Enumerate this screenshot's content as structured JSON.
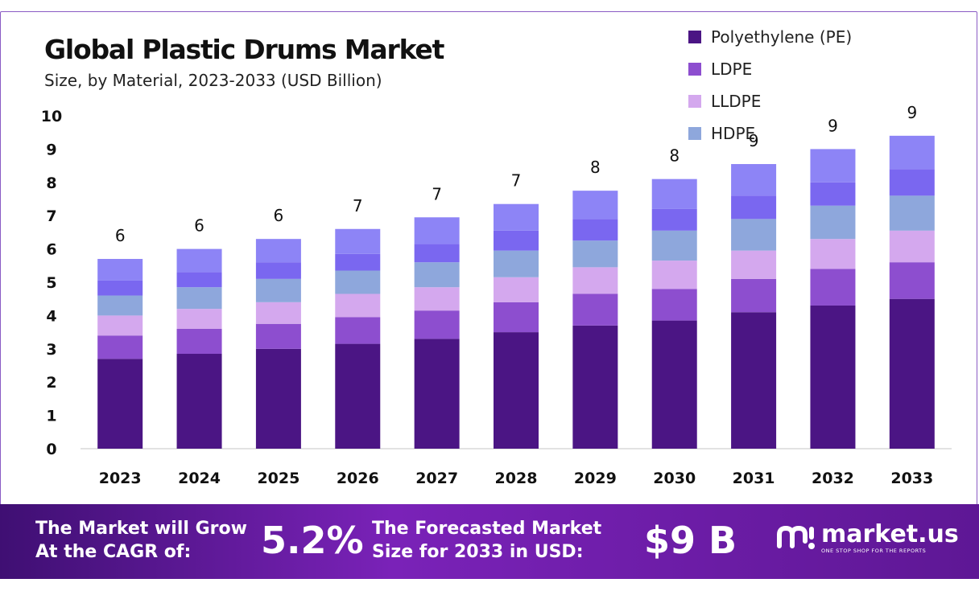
{
  "title": "Global Plastic Drums Market",
  "subtitle": "Size, by Material, 2023-2033 (USD Billion)",
  "colors": {
    "pe": "#4b1584",
    "ldpe": "#8d4ecf",
    "lldpe": "#d4a8ee",
    "hdpe": "#8ea7dc",
    "s5": "#7a67f0",
    "s6": "#8d84f6",
    "frame": "#8a5bc4"
  },
  "chart_data": {
    "type": "bar",
    "stacked": true,
    "title": "Global Plastic Drums Market",
    "subtitle": "Size, by Material, 2023-2033 (USD Billion)",
    "categories": [
      "2023",
      "2024",
      "2025",
      "2026",
      "2027",
      "2028",
      "2029",
      "2030",
      "2031",
      "2032",
      "2033"
    ],
    "series": [
      {
        "name": "Polyethylene (PE)",
        "color": "#4b1584",
        "values": [
          2.7,
          2.85,
          3.0,
          3.15,
          3.3,
          3.5,
          3.7,
          3.85,
          4.1,
          4.3,
          4.5
        ]
      },
      {
        "name": "LDPE",
        "color": "#8d4ecf",
        "values": [
          0.7,
          0.75,
          0.75,
          0.8,
          0.85,
          0.9,
          0.95,
          0.95,
          1.0,
          1.1,
          1.1
        ]
      },
      {
        "name": "LLDPE",
        "color": "#d4a8ee",
        "values": [
          0.6,
          0.6,
          0.65,
          0.7,
          0.7,
          0.75,
          0.8,
          0.85,
          0.85,
          0.9,
          0.95
        ]
      },
      {
        "name": "HDPE",
        "color": "#8ea7dc",
        "values": [
          0.6,
          0.65,
          0.7,
          0.7,
          0.75,
          0.8,
          0.8,
          0.9,
          0.95,
          1.0,
          1.05
        ]
      },
      {
        "name": "",
        "color": "#7a67f0",
        "values": [
          0.45,
          0.45,
          0.5,
          0.5,
          0.55,
          0.6,
          0.65,
          0.65,
          0.7,
          0.7,
          0.8
        ]
      },
      {
        "name": "",
        "color": "#8d84f6",
        "values": [
          0.65,
          0.7,
          0.7,
          0.75,
          0.8,
          0.8,
          0.85,
          0.9,
          0.95,
          1.0,
          1.0
        ]
      }
    ],
    "totals_labels": [
      "6",
      "6",
      "6",
      "7",
      "7",
      "7",
      "8",
      "8",
      "9",
      "9",
      "9"
    ],
    "xlabel": "",
    "ylabel": "",
    "ylim": [
      0,
      10
    ],
    "yticks": [
      "0",
      "1",
      "2",
      "3",
      "4",
      "5",
      "6",
      "7",
      "8",
      "9",
      "10"
    ],
    "legend_position": "top-right"
  },
  "legend": [
    {
      "label": "Polyethylene (PE)",
      "color": "#4b1584"
    },
    {
      "label": "LDPE",
      "color": "#8d4ecf"
    },
    {
      "label": "LLDPE",
      "color": "#d4a8ee"
    },
    {
      "label": "HDPE",
      "color": "#8ea7dc"
    }
  ],
  "footer": {
    "cagr_text_line1": "The Market will Grow",
    "cagr_text_line2": "At the CAGR of:",
    "cagr_value": "5.2%",
    "forecast_text_line1": "The Forecasted Market",
    "forecast_text_line2": "Size for 2033 in USD:",
    "forecast_value": "$9 B",
    "brand_name": "market.us",
    "brand_tagline": "ONE STOP SHOP FOR THE REPORTS"
  }
}
